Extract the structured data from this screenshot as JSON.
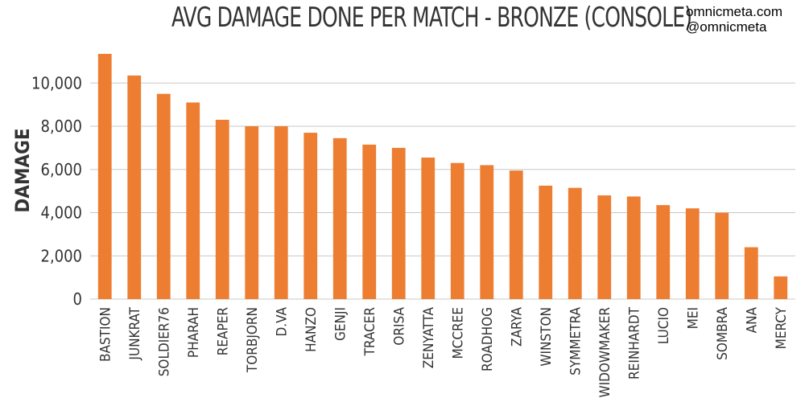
{
  "header": {
    "title": "AVG DAMAGE DONE PER MATCH - BRONZE (CONSOLE)",
    "site": "omnicmeta.com",
    "handle": "@omnicmeta"
  },
  "chart_data": {
    "type": "bar",
    "title": "AVG DAMAGE DONE PER MATCH - BRONZE (CONSOLE)",
    "xlabel": "",
    "ylabel": "DAMAGE",
    "ylim": [
      0,
      11500
    ],
    "yticks": [
      0,
      2000,
      4000,
      6000,
      8000,
      10000
    ],
    "ytick_labels": [
      "0",
      "2,000",
      "4,000",
      "6,000",
      "8,000",
      "10,000"
    ],
    "grid": true,
    "bar_color": "#ED7D31",
    "categories": [
      "BASTION",
      "JUNKRAT",
      "SOLDIER76",
      "PHARAH",
      "REAPER",
      "TORBJORN",
      "D.VA",
      "HANZO",
      "GENJI",
      "TRACER",
      "ORISA",
      "ZENYATTA",
      "MCCREE",
      "ROADHOG",
      "ZARYA",
      "WINSTON",
      "SYMMETRA",
      "WIDOWMAKER",
      "REINHARDT",
      "LUCIO",
      "MEI",
      "SOMBRA",
      "ANA",
      "MERCY"
    ],
    "values": [
      11350,
      10350,
      9500,
      9100,
      8300,
      8000,
      8000,
      7700,
      7450,
      7150,
      7000,
      6550,
      6300,
      6200,
      5950,
      5250,
      5150,
      4800,
      4750,
      4350,
      4200,
      4000,
      2400,
      1050
    ]
  }
}
